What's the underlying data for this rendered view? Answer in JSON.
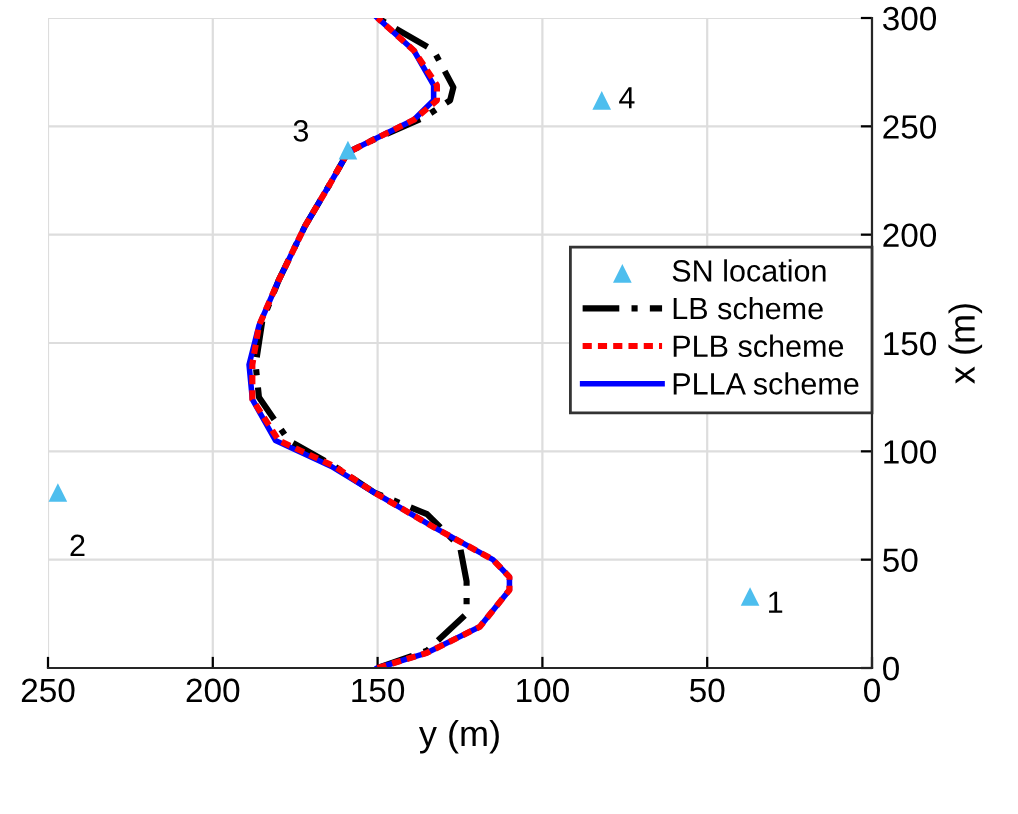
{
  "chart_data": {
    "type": "line",
    "xlabel": "y (m)",
    "ylabel": "x (m)",
    "xlim": [
      250,
      0
    ],
    "ylim": [
      0,
      300
    ],
    "xticks": [
      0,
      50,
      100,
      150,
      200,
      250
    ],
    "yticks": [
      0,
      50,
      100,
      150,
      200,
      250,
      300
    ],
    "grid": true,
    "legend": "right",
    "series": [
      {
        "name": "SN location",
        "type": "scatter",
        "marker": "triangle",
        "color": "#4dbeee",
        "x": [
          37,
          247,
          159,
          82
        ],
        "values": [
          33,
          81,
          239,
          262
        ]
      },
      {
        "name": "LB scheme",
        "line_style": "dashed",
        "color": "#000000",
        "x": [
          150,
          135,
          123,
          123,
          125,
          135,
          151,
          163,
          177,
          186,
          187,
          185,
          180,
          172,
          165,
          159,
          151,
          136,
          128,
          127,
          133,
          150
        ],
        "values": [
          0,
          8,
          25,
          40,
          56,
          71,
          81,
          93,
          105,
          125,
          140,
          160,
          179,
          204,
          222,
          238,
          244,
          254,
          262,
          268,
          285,
          300
        ]
      },
      {
        "name": "PLB scheme",
        "line_style": "dotted",
        "color": "#ff0000",
        "x": [
          150,
          135,
          119,
          110,
          110,
          115,
          133,
          151,
          163,
          180,
          188,
          188,
          186,
          180,
          172,
          165,
          159,
          151,
          139,
          132,
          132,
          139,
          150
        ],
        "values": [
          0,
          7,
          19,
          36,
          42,
          50,
          65,
          81,
          93,
          105,
          124,
          140,
          158,
          179,
          204,
          222,
          238,
          244,
          253,
          262,
          269,
          285,
          300
        ]
      },
      {
        "name": "PLLA scheme",
        "line_style": "solid",
        "color": "#0000ff",
        "x": [
          150,
          135,
          119,
          110,
          110,
          115,
          133,
          151,
          164,
          181,
          188,
          189,
          186,
          180,
          172,
          165,
          159,
          151,
          139,
          133,
          133,
          139,
          150
        ],
        "values": [
          0,
          7,
          19,
          36,
          42,
          50,
          65,
          81,
          93,
          105,
          124,
          140,
          158,
          179,
          204,
          222,
          238,
          244,
          253,
          262,
          269,
          285,
          300
        ]
      }
    ],
    "annotations": [
      {
        "text": "1",
        "x": 37,
        "y": 33
      },
      {
        "text": "2",
        "x": 247,
        "y": 81
      },
      {
        "text": "3",
        "x": 159,
        "y": 239
      },
      {
        "text": "4",
        "x": 82,
        "y": 262
      }
    ]
  }
}
